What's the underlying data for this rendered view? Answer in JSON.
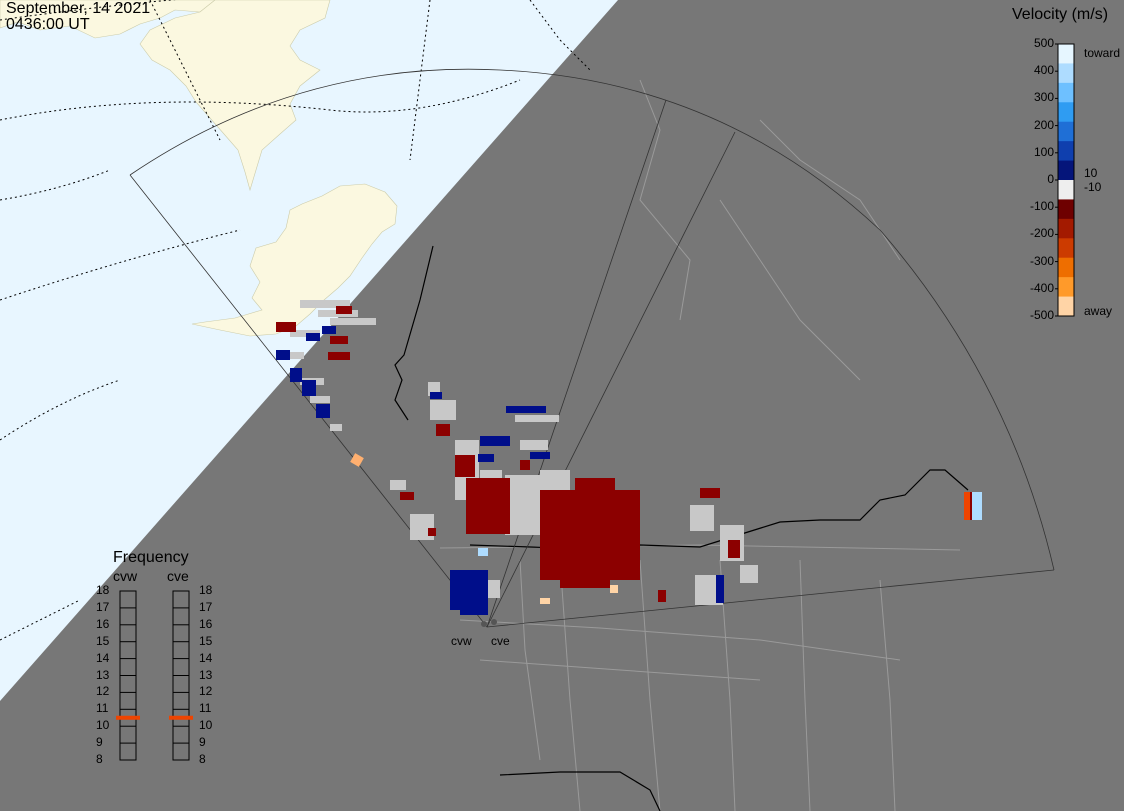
{
  "header": {
    "date": "September, 14 2021",
    "time": "0436:00 UT"
  },
  "velocity_legend": {
    "title": "Velocity (m/s)",
    "ticks": [
      "500",
      "400",
      "300",
      "200",
      "100",
      "0",
      "-100",
      "-200",
      "-300",
      "-400",
      "-500"
    ],
    "side_labels": {
      "top": "toward",
      "pos_small": "10",
      "neg_small": "-10",
      "bottom": "away"
    },
    "colors": [
      "#e6f6ff",
      "#aedcff",
      "#6ec0ff",
      "#2f9cf2",
      "#1f6fd6",
      "#0f3fae",
      "#05157a",
      "#eeeeee",
      "#6e0000",
      "#a31a00",
      "#cc3b00",
      "#ee6e00",
      "#ff9a2a",
      "#ffd4a6"
    ]
  },
  "frequency_legend": {
    "title": "Frequency",
    "radars": [
      "cvw",
      "cve"
    ],
    "ticks": [
      "18",
      "17",
      "16",
      "15",
      "14",
      "13",
      "12",
      "11",
      "10",
      "9",
      "8"
    ],
    "marker_color": "#ee4400",
    "cvw_mhz": 10.5,
    "cve_mhz": 10.5
  },
  "radar_sites": {
    "cvw": "cvw",
    "cve": "cve"
  },
  "colors": {
    "ocean": "#e8f6ff",
    "land_day": "#fbf8e0",
    "night": "#777777",
    "echo_ground": "#c8c8c8",
    "echo_toward": "#000e8a",
    "echo_away": "#8c0000"
  }
}
